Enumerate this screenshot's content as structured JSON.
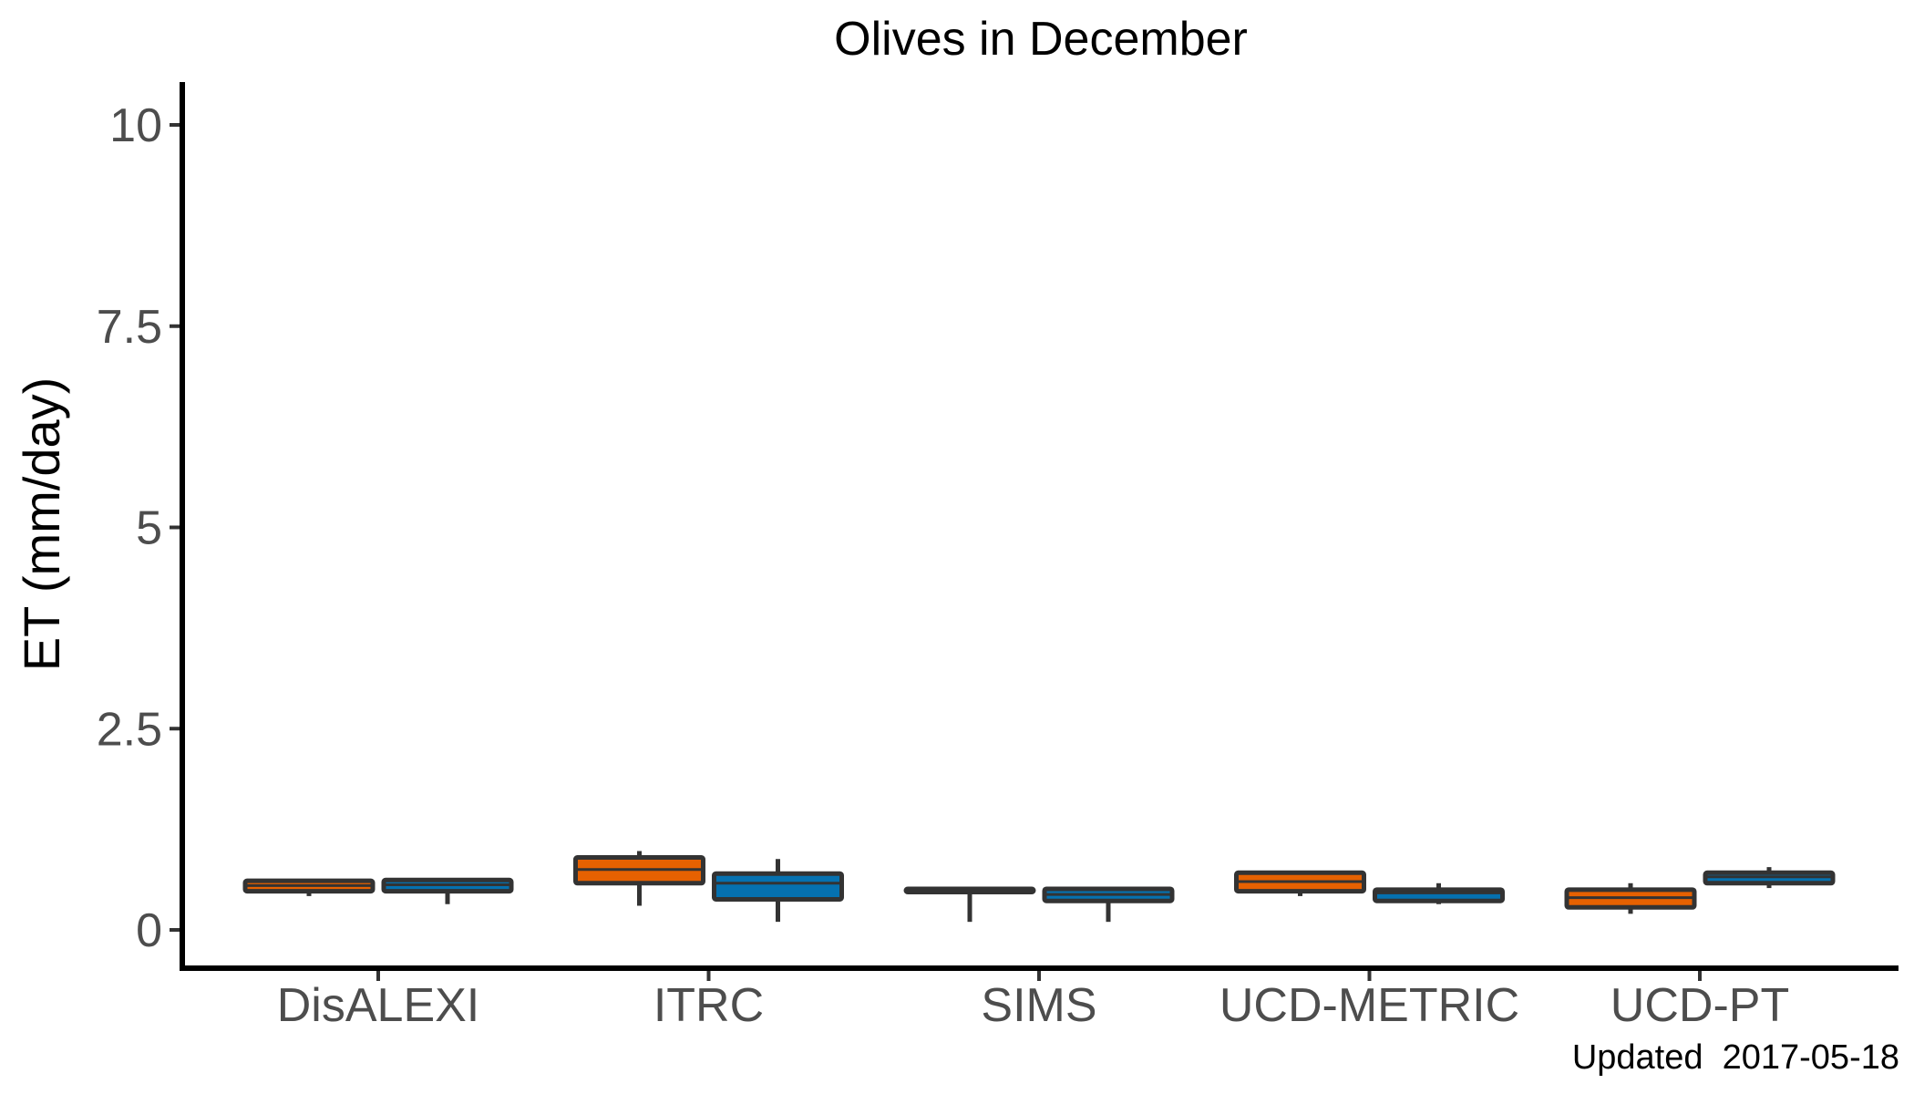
{
  "chart_data": {
    "type": "box",
    "title": "Olives in December",
    "xlabel": "",
    "ylabel": "ET (mm/day)",
    "ylim": [
      -0.5,
      10.5
    ],
    "yticks": [
      0,
      2.5,
      5,
      7.5,
      10
    ],
    "ytick_labels": [
      "0",
      "2.5",
      "5",
      "7.5",
      "10"
    ],
    "categories": [
      "DisALEXI",
      "ITRC",
      "SIMS",
      "UCD-METRIC",
      "UCD-PT"
    ],
    "grid": false,
    "legend": "none",
    "colors": {
      "series_a": "#e66101",
      "series_b": "#0571b0",
      "box_border": "#333333",
      "axis": "#000000",
      "tick_text": "#4d4d4d"
    },
    "series": [
      {
        "color": "#e66101",
        "boxes": [
          {
            "category": "DisALEXI",
            "min": 0.42,
            "q1": 0.48,
            "median": 0.55,
            "q3": 0.61,
            "max": 0.63
          },
          {
            "category": "ITRC",
            "min": 0.3,
            "q1": 0.58,
            "median": 0.75,
            "q3": 0.9,
            "max": 0.98
          },
          {
            "category": "SIMS",
            "min": 0.1,
            "q1": 0.47,
            "median": 0.49,
            "q3": 0.51,
            "max": 0.52
          },
          {
            "category": "UCD-METRIC",
            "min": 0.42,
            "q1": 0.48,
            "median": 0.6,
            "q3": 0.71,
            "max": 0.73
          },
          {
            "category": "UCD-PT",
            "min": 0.2,
            "q1": 0.28,
            "median": 0.4,
            "q3": 0.5,
            "max": 0.58
          }
        ]
      },
      {
        "color": "#0571b0",
        "boxes": [
          {
            "category": "DisALEXI",
            "min": 0.32,
            "q1": 0.48,
            "median": 0.56,
            "q3": 0.62,
            "max": 0.63
          },
          {
            "category": "ITRC",
            "min": 0.1,
            "q1": 0.38,
            "median": 0.58,
            "q3": 0.7,
            "max": 0.88
          },
          {
            "category": "SIMS",
            "min": 0.1,
            "q1": 0.36,
            "median": 0.44,
            "q3": 0.51,
            "max": 0.53
          },
          {
            "category": "UCD-METRIC",
            "min": 0.32,
            "q1": 0.36,
            "median": 0.46,
            "q3": 0.5,
            "max": 0.58
          },
          {
            "category": "UCD-PT",
            "min": 0.52,
            "q1": 0.58,
            "median": 0.66,
            "q3": 0.71,
            "max": 0.78
          }
        ]
      }
    ],
    "caption": "Updated  2017-05-18"
  }
}
